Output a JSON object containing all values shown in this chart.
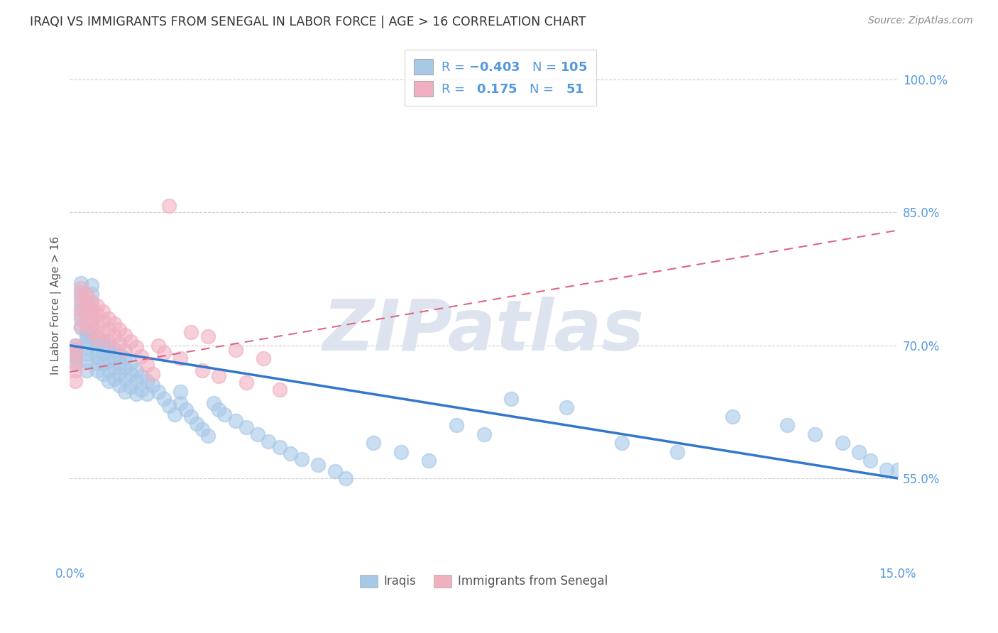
{
  "title": "IRAQI VS IMMIGRANTS FROM SENEGAL IN LABOR FORCE | AGE > 16 CORRELATION CHART",
  "source": "Source: ZipAtlas.com",
  "ylabel": "In Labor Force | Age > 16",
  "xlim": [
    0.0,
    0.15
  ],
  "ylim": [
    0.455,
    1.035
  ],
  "xticks": [
    0.0,
    0.03,
    0.06,
    0.09,
    0.12,
    0.15
  ],
  "xticklabels": [
    "0.0%",
    "",
    "",
    "",
    "",
    "15.0%"
  ],
  "yticks": [
    0.55,
    0.7,
    0.85,
    1.0
  ],
  "yticklabels": [
    "55.0%",
    "70.0%",
    "85.0%",
    "100.0%"
  ],
  "grid_color": "#cccccc",
  "background_color": "#ffffff",
  "watermark_text": "ZIPatlas",
  "watermark_color": "#dde4ef",
  "legend_N_iraqi": "105",
  "legend_R_senegal": "0.175",
  "legend_N_senegal": "51",
  "iraqi_color": "#a8c8e8",
  "senegal_color": "#f0b0c0",
  "iraqi_line_color": "#3377cc",
  "senegal_line_color": "#dd6688",
  "title_color": "#333333",
  "axis_label_color": "#555555",
  "tick_color": "#5599dd",
  "legend_text_color": "#5599dd",
  "iraqi_x": [
    0.001,
    0.001,
    0.001,
    0.001,
    0.002,
    0.002,
    0.002,
    0.002,
    0.002,
    0.002,
    0.003,
    0.003,
    0.003,
    0.003,
    0.003,
    0.003,
    0.003,
    0.004,
    0.004,
    0.004,
    0.004,
    0.004,
    0.004,
    0.005,
    0.005,
    0.005,
    0.005,
    0.005,
    0.005,
    0.006,
    0.006,
    0.006,
    0.006,
    0.006,
    0.007,
    0.007,
    0.007,
    0.007,
    0.007,
    0.008,
    0.008,
    0.008,
    0.008,
    0.009,
    0.009,
    0.009,
    0.009,
    0.01,
    0.01,
    0.01,
    0.01,
    0.011,
    0.011,
    0.011,
    0.012,
    0.012,
    0.012,
    0.013,
    0.013,
    0.014,
    0.014,
    0.015,
    0.016,
    0.017,
    0.018,
    0.019,
    0.02,
    0.02,
    0.021,
    0.022,
    0.023,
    0.024,
    0.025,
    0.026,
    0.027,
    0.028,
    0.03,
    0.032,
    0.034,
    0.036,
    0.038,
    0.04,
    0.042,
    0.045,
    0.048,
    0.05,
    0.055,
    0.06,
    0.065,
    0.07,
    0.075,
    0.08,
    0.09,
    0.1,
    0.11,
    0.12,
    0.13,
    0.135,
    0.14,
    0.143,
    0.145,
    0.148,
    0.15,
    0.152,
    0.153
  ],
  "iraqi_y": [
    0.7,
    0.695,
    0.688,
    0.68,
    0.77,
    0.76,
    0.75,
    0.74,
    0.73,
    0.72,
    0.715,
    0.71,
    0.705,
    0.698,
    0.69,
    0.682,
    0.672,
    0.768,
    0.758,
    0.748,
    0.738,
    0.728,
    0.718,
    0.71,
    0.702,
    0.695,
    0.688,
    0.68,
    0.672,
    0.705,
    0.698,
    0.69,
    0.68,
    0.668,
    0.7,
    0.692,
    0.682,
    0.672,
    0.66,
    0.695,
    0.685,
    0.675,
    0.662,
    0.69,
    0.68,
    0.668,
    0.655,
    0.685,
    0.675,
    0.662,
    0.648,
    0.68,
    0.668,
    0.653,
    0.672,
    0.66,
    0.645,
    0.665,
    0.65,
    0.66,
    0.645,
    0.655,
    0.648,
    0.64,
    0.632,
    0.622,
    0.648,
    0.635,
    0.628,
    0.62,
    0.612,
    0.605,
    0.598,
    0.635,
    0.628,
    0.622,
    0.615,
    0.608,
    0.6,
    0.592,
    0.585,
    0.578,
    0.572,
    0.565,
    0.558,
    0.55,
    0.59,
    0.58,
    0.57,
    0.61,
    0.6,
    0.64,
    0.63,
    0.59,
    0.58,
    0.62,
    0.61,
    0.6,
    0.59,
    0.58,
    0.57,
    0.56,
    0.56,
    0.57,
    0.555
  ],
  "senegal_x": [
    0.001,
    0.001,
    0.001,
    0.001,
    0.001,
    0.002,
    0.002,
    0.002,
    0.002,
    0.002,
    0.003,
    0.003,
    0.003,
    0.003,
    0.004,
    0.004,
    0.004,
    0.004,
    0.005,
    0.005,
    0.005,
    0.005,
    0.006,
    0.006,
    0.006,
    0.007,
    0.007,
    0.007,
    0.008,
    0.008,
    0.009,
    0.009,
    0.01,
    0.01,
    0.011,
    0.012,
    0.013,
    0.014,
    0.015,
    0.016,
    0.017,
    0.018,
    0.02,
    0.022,
    0.024,
    0.025,
    0.027,
    0.03,
    0.032,
    0.035,
    0.038
  ],
  "senegal_y": [
    0.7,
    0.692,
    0.682,
    0.672,
    0.66,
    0.765,
    0.755,
    0.745,
    0.735,
    0.722,
    0.758,
    0.748,
    0.738,
    0.725,
    0.75,
    0.74,
    0.728,
    0.715,
    0.745,
    0.735,
    0.722,
    0.708,
    0.738,
    0.728,
    0.715,
    0.73,
    0.718,
    0.705,
    0.725,
    0.71,
    0.718,
    0.702,
    0.712,
    0.695,
    0.705,
    0.698,
    0.688,
    0.678,
    0.668,
    0.7,
    0.692,
    0.858,
    0.685,
    0.715,
    0.672,
    0.71,
    0.665,
    0.695,
    0.658,
    0.685,
    0.65
  ]
}
